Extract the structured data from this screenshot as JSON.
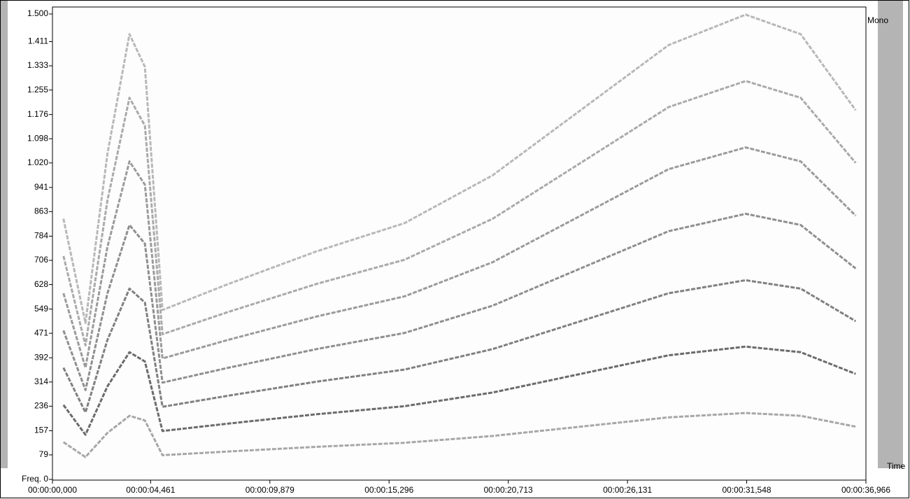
{
  "chart_data": {
    "type": "spectrogram",
    "labels": {
      "channel": "Mono",
      "time_axis": "Time"
    },
    "xlim": [
      0,
      36.966
    ],
    "ylim": [
      0,
      1500
    ],
    "xticks": [
      {
        "value": 0,
        "label": "00:00:00,000"
      },
      {
        "value": 4.461,
        "label": "00:00:04,461"
      },
      {
        "value": 9.879,
        "label": "00:00:09,879"
      },
      {
        "value": 15.296,
        "label": "00:00:15,296"
      },
      {
        "value": 20.713,
        "label": "00:00:20,713"
      },
      {
        "value": 26.131,
        "label": "00:00:26,131"
      },
      {
        "value": 31.548,
        "label": "00:00:31,548"
      },
      {
        "value": 36.966,
        "label": "00:00:36,966"
      }
    ],
    "yticks": [
      {
        "value": 0,
        "label": "Freq. 0"
      },
      79,
      157,
      236,
      314,
      392,
      471,
      549,
      628,
      706,
      784,
      863,
      941,
      {
        "value": 1020,
        "label": "1.020"
      },
      {
        "value": 1098,
        "label": "1.098"
      },
      {
        "value": 1176,
        "label": "1.176"
      },
      {
        "value": 1255,
        "label": "1.255"
      },
      {
        "value": 1333,
        "label": "1.333"
      },
      {
        "value": 1411,
        "label": "1.411"
      },
      {
        "value": 1500,
        "label": "1.500"
      }
    ],
    "x": [
      0.5,
      1.5,
      2.5,
      3.5,
      4.2,
      5,
      8,
      12,
      16,
      20,
      24,
      28,
      31.5,
      34,
      36.5
    ],
    "series": [
      {
        "color": "#8a8a8a",
        "values": [
          120,
          72,
          150,
          205,
          190,
          78,
          90,
          105,
          118,
          140,
          170,
          200,
          214,
          205,
          170
        ]
      },
      {
        "color": "#3a3a3a",
        "values": [
          240,
          144,
          300,
          410,
          380,
          156,
          180,
          210,
          236,
          280,
          340,
          400,
          428,
          410,
          340
        ]
      },
      {
        "color": "#555555",
        "values": [
          360,
          216,
          450,
          615,
          570,
          234,
          270,
          315,
          354,
          420,
          510,
          600,
          642,
          615,
          510
        ]
      },
      {
        "color": "#6a6a6a",
        "values": [
          480,
          288,
          600,
          820,
          760,
          312,
          360,
          420,
          472,
          560,
          680,
          800,
          856,
          820,
          680
        ]
      },
      {
        "color": "#7a7a7a",
        "values": [
          600,
          360,
          750,
          1025,
          950,
          390,
          450,
          525,
          590,
          700,
          850,
          1000,
          1070,
          1025,
          850
        ]
      },
      {
        "color": "#8e8e8e",
        "values": [
          720,
          432,
          900,
          1230,
          1140,
          468,
          540,
          630,
          708,
          840,
          1020,
          1200,
          1284,
          1230,
          1020
        ]
      },
      {
        "color": "#a0a0a0",
        "values": [
          840,
          504,
          1050,
          1435,
          1330,
          546,
          630,
          735,
          826,
          980,
          1190,
          1400,
          1498,
          1435,
          1190
        ]
      }
    ]
  }
}
